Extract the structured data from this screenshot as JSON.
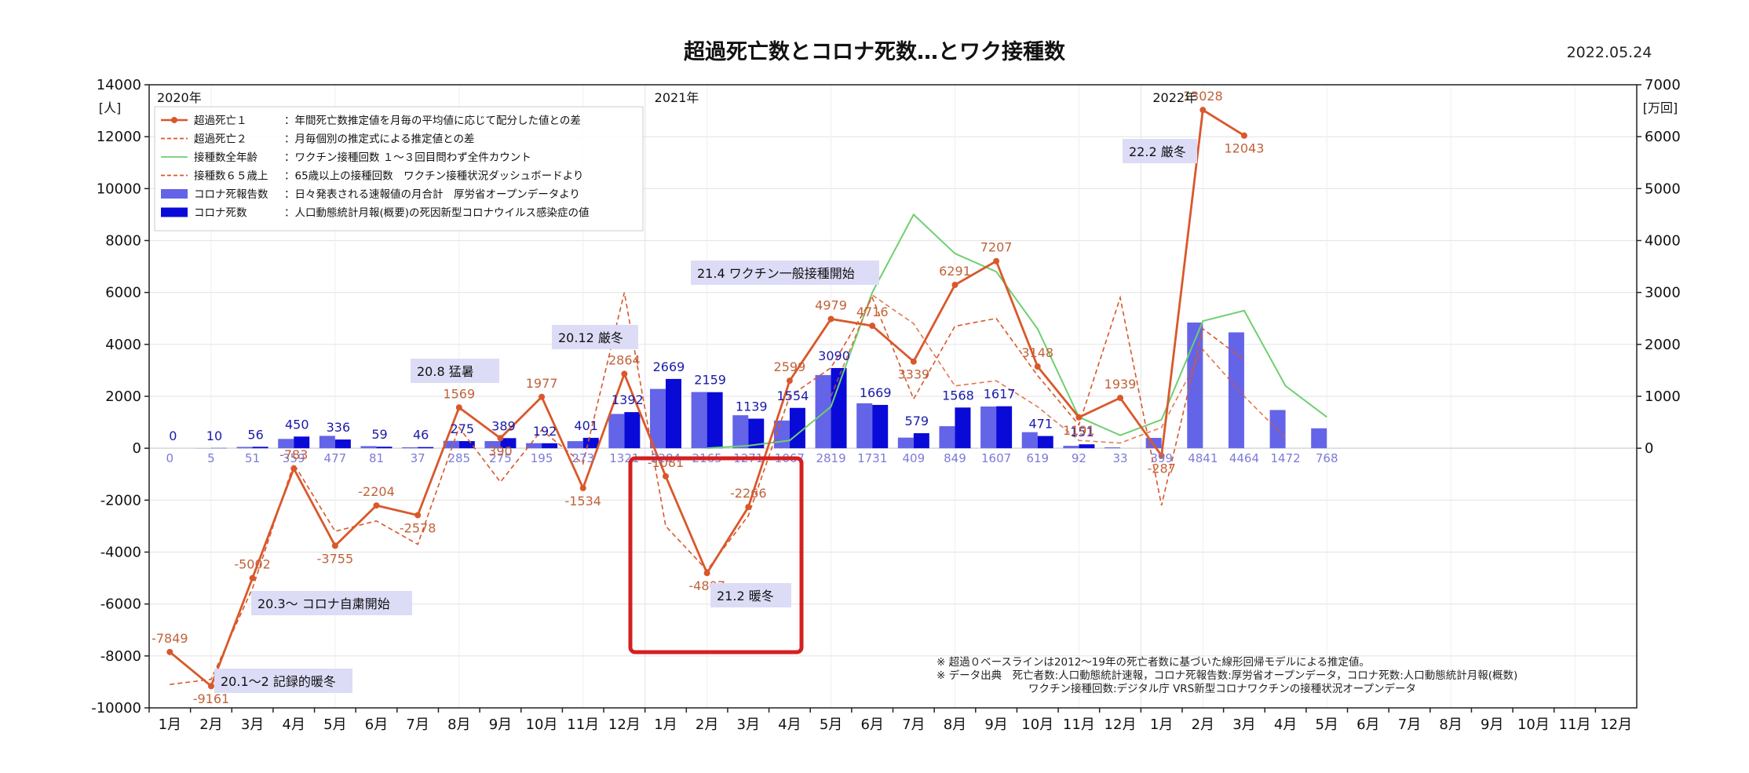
{
  "title": "超過死亡数とコロナ死数…とワク接種数",
  "date": "2022.05.24",
  "chart_data": {
    "type": "bar",
    "x_ticks": [
      "1月",
      "2月",
      "3月",
      "4月",
      "5月",
      "6月",
      "7月",
      "8月",
      "9月",
      "10月",
      "11月",
      "12月",
      "1月",
      "2月",
      "3月",
      "4月",
      "5月",
      "6月",
      "7月",
      "8月",
      "9月",
      "10月",
      "11月",
      "12月",
      "1月",
      "2月",
      "3月",
      "4月",
      "5月",
      "6月",
      "7月",
      "8月",
      "9月",
      "10月",
      "11月",
      "12月"
    ],
    "year_labels": [
      "2020年",
      "2021年",
      "2022年"
    ],
    "y_left": {
      "unit": "[人]",
      "min": -10000,
      "max": 14000,
      "ticks": [
        -10000,
        -8000,
        -6000,
        -4000,
        -2000,
        0,
        2000,
        4000,
        6000,
        8000,
        10000,
        12000,
        14000
      ]
    },
    "y_right": {
      "unit": "[万回]",
      "min": -5000,
      "max": 7000,
      "ticks": [
        0,
        1000,
        2000,
        3000,
        4000,
        5000,
        6000,
        7000
      ]
    },
    "legend": [
      {
        "name": "超過死亡１",
        "desc": "：年間死亡数推定値を月毎の平均値に応じて配分した値との差",
        "color": "#d9582b",
        "style": "line-marker"
      },
      {
        "name": "超過死亡２",
        "desc": "：月毎個別の推定式による推定値との差",
        "color": "#d9582b",
        "style": "dashed"
      },
      {
        "name": "接種数全年齢",
        "desc": "：ワクチン接種回数 １～３回目問わず全件カウント",
        "color": "#6fcf6f",
        "style": "line"
      },
      {
        "name": "接種数６５歳上",
        "desc": "：65歳以上の接種回数　ワクチン接種状況ダッシュボードより",
        "color": "#d9582b",
        "style": "dashed"
      },
      {
        "name": "コロナ死報告数",
        "desc": "：日々発表される速報値の月合計　厚労省オープンデータより",
        "color": "#6464e8",
        "style": "bar"
      },
      {
        "name": "コロナ死数",
        "desc": "：人口動態統計月報(概要)の死因新型コロナウイルス感染症の値",
        "color": "#0a0ad8",
        "style": "bar"
      }
    ],
    "series": [
      {
        "name": "コロナ死報告数",
        "color": "#6464e8",
        "values": [
          0,
          5,
          51,
          359,
          477,
          81,
          37,
          285,
          275,
          195,
          273,
          1321,
          2284,
          2165,
          1271,
          1067,
          2819,
          1731,
          409,
          849,
          1607,
          619,
          92,
          33,
          399,
          4841,
          4464,
          1472,
          768,
          null,
          null,
          null,
          null,
          null,
          null,
          null
        ]
      },
      {
        "name": "コロナ死数",
        "color": "#0a0ad8",
        "values": [
          0,
          10,
          56,
          450,
          336,
          59,
          46,
          275,
          389,
          192,
          401,
          1392,
          2669,
          2159,
          1139,
          1554,
          3090,
          1669,
          579,
          1568,
          1617,
          471,
          151,
          null,
          null,
          null,
          null,
          null,
          null,
          null,
          null,
          null,
          null,
          null,
          null,
          null
        ]
      },
      {
        "name": "超過死亡１",
        "color": "#d9582b",
        "values": [
          -7849,
          -9161,
          -5002,
          -783,
          -3755,
          -2204,
          -2578,
          1569,
          390,
          1977,
          -1534,
          2864,
          -1081,
          -4807,
          -2266,
          2599,
          4979,
          4716,
          3339,
          6291,
          7207,
          3148,
          1191,
          1939,
          -287,
          13028,
          12043,
          null,
          null,
          null,
          null,
          null,
          null,
          null,
          null,
          null
        ]
      },
      {
        "name": "超過死亡２",
        "color": "#d9582b",
        "values": [
          -9100,
          -8900,
          -5400,
          -600,
          -3200,
          -2800,
          -3700,
          800,
          -1300,
          700,
          -600,
          6000,
          -3000,
          -4700,
          -2600,
          2000,
          3100,
          5800,
          1900,
          4700,
          5000,
          2800,
          900,
          5800,
          -2200,
          4600,
          3400,
          null,
          null,
          null,
          null,
          null,
          null,
          null,
          null,
          null
        ]
      },
      {
        "name": "接種数全年齢",
        "axis": "right",
        "color": "#6fcf6f",
        "values": [
          null,
          null,
          null,
          null,
          null,
          null,
          null,
          null,
          null,
          null,
          null,
          null,
          null,
          0,
          50,
          150,
          800,
          3000,
          4500,
          3750,
          3400,
          2300,
          600,
          250,
          550,
          2450,
          2650,
          1200,
          600,
          null,
          null,
          null,
          null,
          null,
          null,
          null
        ]
      },
      {
        "name": "接種数６５歳上",
        "axis": "right",
        "color": "#d9582b",
        "values": [
          null,
          null,
          null,
          null,
          null,
          null,
          null,
          null,
          null,
          null,
          null,
          null,
          null,
          null,
          null,
          null,
          1000,
          2950,
          2400,
          1200,
          1300,
          800,
          150,
          100,
          400,
          1900,
          1000,
          200,
          null,
          null,
          null,
          null,
          null,
          null,
          null,
          null
        ]
      }
    ]
  },
  "annotations": [
    {
      "text": "20.1～2 記録的暖冬"
    },
    {
      "text": "20.3～ コロナ自粛開始"
    },
    {
      "text": "20.8 猛暑"
    },
    {
      "text": "20.12 厳冬"
    },
    {
      "text": "21.2 暖冬"
    },
    {
      "text": "21.4 ワクチン一般接種開始"
    },
    {
      "text": "22.2 厳冬"
    }
  ],
  "notes": [
    "※ 超過０ベースラインは2012～19年の死亡者数に基づいた線形回帰モデルによる推定値。",
    "※ データ出典　死亡者数:人口動態統計速報，コロナ死報告数:厚労省オープンデータ，コロナ死数:人口動態統計月報(概数)",
    "ワクチン接種回数:デジタル庁 VRS新型コロナワクチンの接種状況オープンデータ"
  ],
  "colors": {
    "highlight_box": "#d42020",
    "annotation_bg": "#dcdcf7",
    "grid": "#e6e6e6"
  }
}
